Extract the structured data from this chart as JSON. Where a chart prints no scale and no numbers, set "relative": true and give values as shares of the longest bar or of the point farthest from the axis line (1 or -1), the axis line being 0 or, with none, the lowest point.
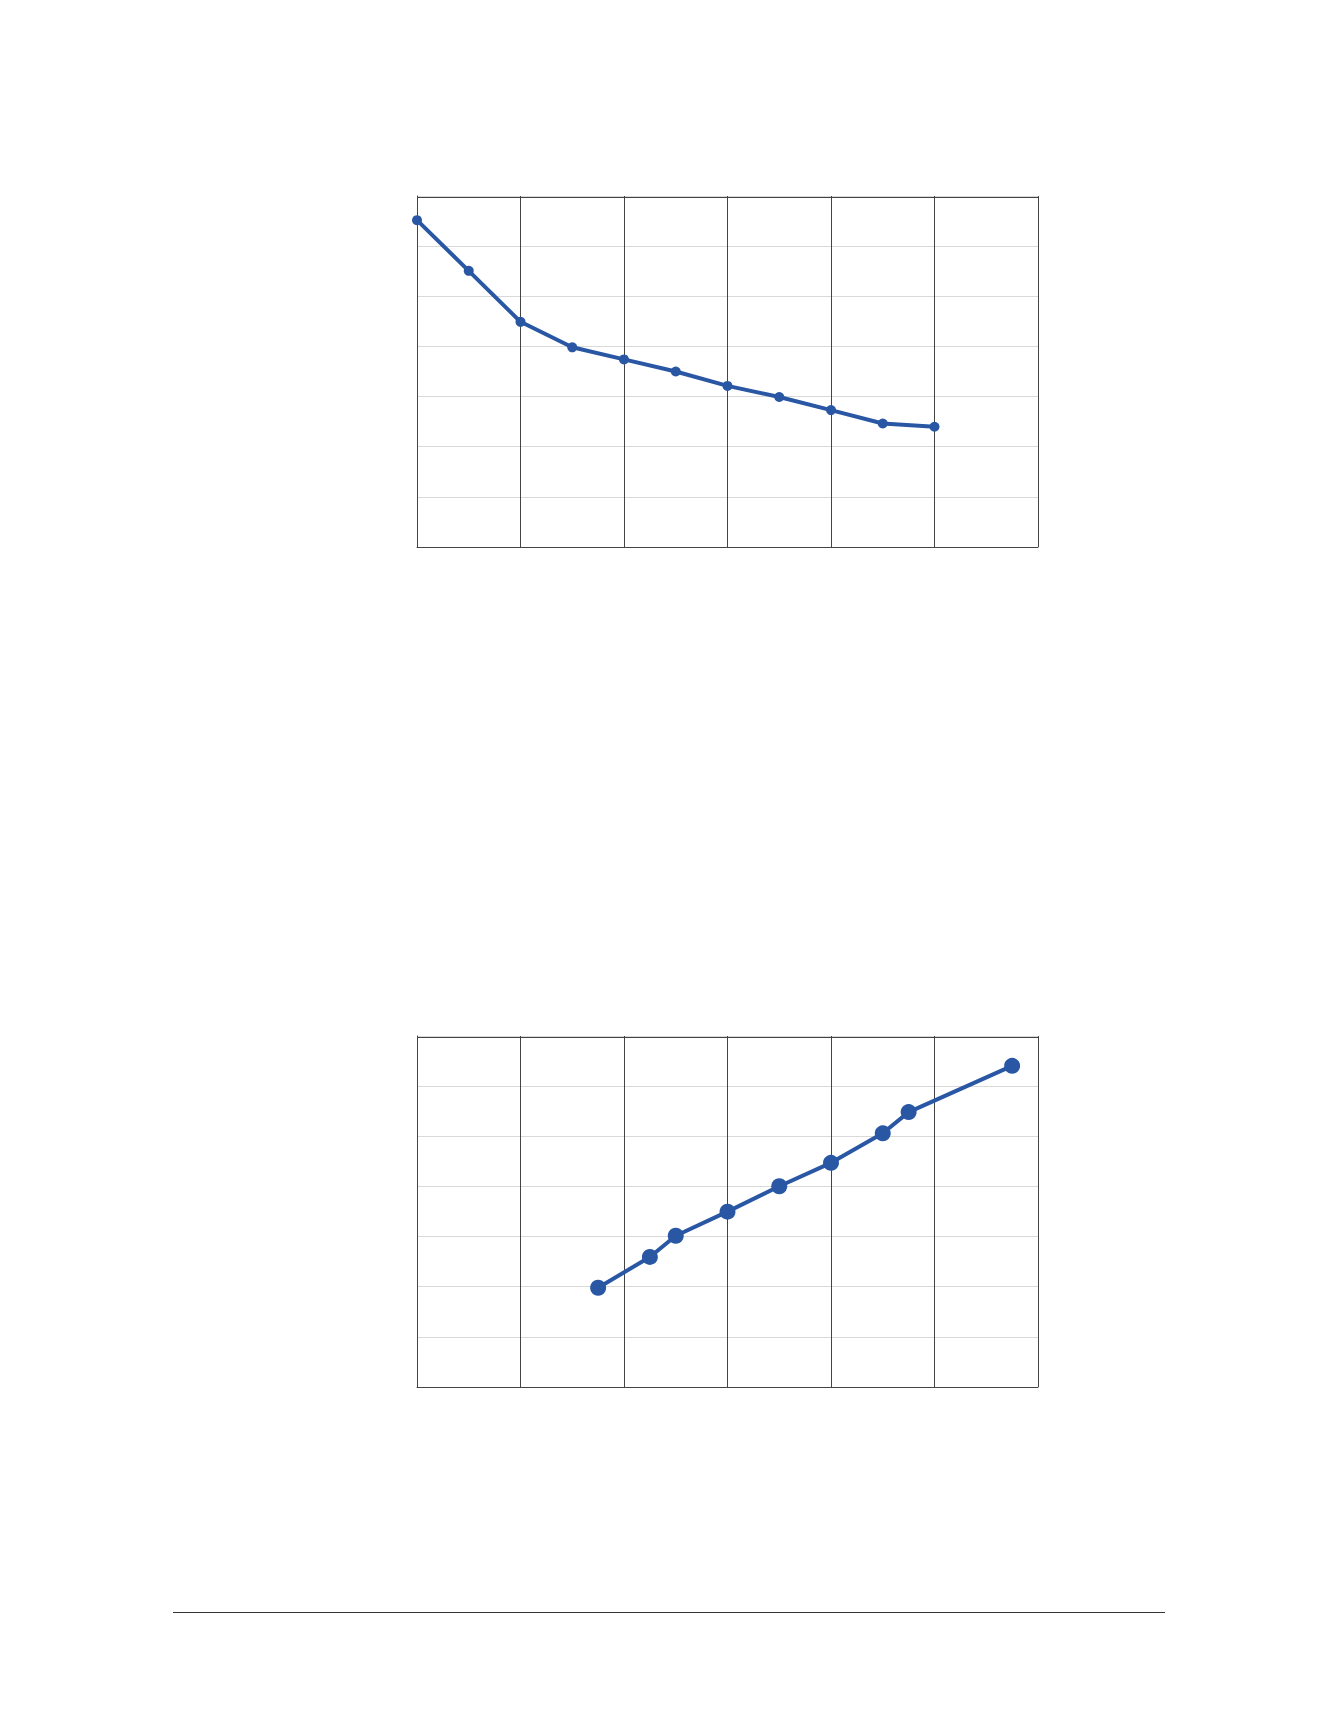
{
  "chart_data": [
    {
      "type": "line",
      "relative": true,
      "categories": [
        null,
        null,
        null,
        null,
        null,
        null,
        null,
        null,
        null,
        null,
        null,
        null,
        null
      ],
      "series": [
        {
          "color": "#2957a4",
          "values": [
            1,
            0.845,
            0.689,
            0.611,
            0.574,
            0.537,
            0.493,
            0.459,
            0.419,
            0.378,
            0.368,
            null,
            null
          ]
        }
      ],
      "marker": "circle",
      "line_style": "solid",
      "grid": true,
      "tick_labels": false
    },
    {
      "type": "line",
      "relative": true,
      "categories": [
        null,
        null,
        null,
        null,
        null,
        null,
        null,
        null,
        null,
        null,
        null,
        null,
        null,
        null,
        null,
        null,
        null,
        null,
        null,
        null,
        null,
        null,
        null,
        null,
        null
      ],
      "series": [
        {
          "color": "#2957a4",
          "values": [
            null,
            null,
            null,
            null,
            null,
            null,
            null,
            0.309,
            null,
            0.405,
            0.471,
            null,
            0.546,
            null,
            0.625,
            null,
            0.698,
            null,
            0.79,
            0.856,
            null,
            null,
            null,
            1,
            null
          ]
        }
      ],
      "marker": "circle",
      "line_style": "solid",
      "grid": true,
      "tick_labels": false
    }
  ]
}
